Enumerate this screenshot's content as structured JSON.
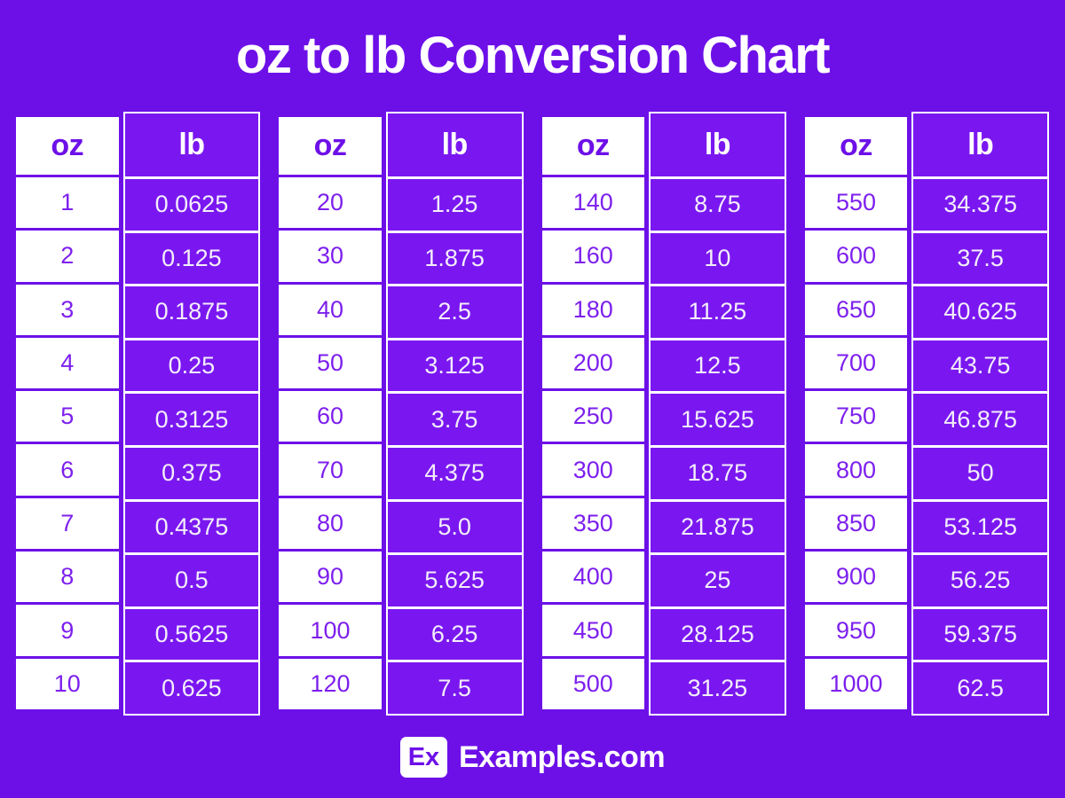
{
  "page": {
    "title": "oz to lb Conversion Chart",
    "colors": {
      "background": "#6D10E8",
      "cell_purple": "#7A17F0",
      "oz_text": "#7D1FED",
      "header_oz_text": "#6D10E8",
      "lb_text": "#F3EEFA",
      "white": "#FFFFFF"
    }
  },
  "chart_data": {
    "type": "table",
    "title": "oz to lb Conversion Chart",
    "columns": [
      "oz",
      "lb"
    ],
    "tables": [
      {
        "rows": [
          [
            "1",
            "0.0625"
          ],
          [
            "2",
            "0.125"
          ],
          [
            "3",
            "0.1875"
          ],
          [
            "4",
            "0.25"
          ],
          [
            "5",
            "0.3125"
          ],
          [
            "6",
            "0.375"
          ],
          [
            "7",
            "0.4375"
          ],
          [
            "8",
            "0.5"
          ],
          [
            "9",
            "0.5625"
          ],
          [
            "10",
            "0.625"
          ]
        ]
      },
      {
        "rows": [
          [
            "20",
            "1.25"
          ],
          [
            "30",
            "1.875"
          ],
          [
            "40",
            "2.5"
          ],
          [
            "50",
            "3.125"
          ],
          [
            "60",
            "3.75"
          ],
          [
            "70",
            "4.375"
          ],
          [
            "80",
            "5.0"
          ],
          [
            "90",
            "5.625"
          ],
          [
            "100",
            "6.25"
          ],
          [
            "120",
            "7.5"
          ]
        ]
      },
      {
        "rows": [
          [
            "140",
            "8.75"
          ],
          [
            "160",
            "10"
          ],
          [
            "180",
            "11.25"
          ],
          [
            "200",
            "12.5"
          ],
          [
            "250",
            "15.625"
          ],
          [
            "300",
            "18.75"
          ],
          [
            "350",
            "21.875"
          ],
          [
            "400",
            "25"
          ],
          [
            "450",
            "28.125"
          ],
          [
            "500",
            "31.25"
          ]
        ]
      },
      {
        "rows": [
          [
            "550",
            "34.375"
          ],
          [
            "600",
            "37.5"
          ],
          [
            "650",
            "40.625"
          ],
          [
            "700",
            "43.75"
          ],
          [
            "750",
            "46.875"
          ],
          [
            "800",
            "50"
          ],
          [
            "850",
            "53.125"
          ],
          [
            "900",
            "56.25"
          ],
          [
            "950",
            "59.375"
          ],
          [
            "1000",
            "62.5"
          ]
        ]
      }
    ]
  },
  "footer": {
    "logo_text": "Ex",
    "brand": "Examples.com"
  }
}
